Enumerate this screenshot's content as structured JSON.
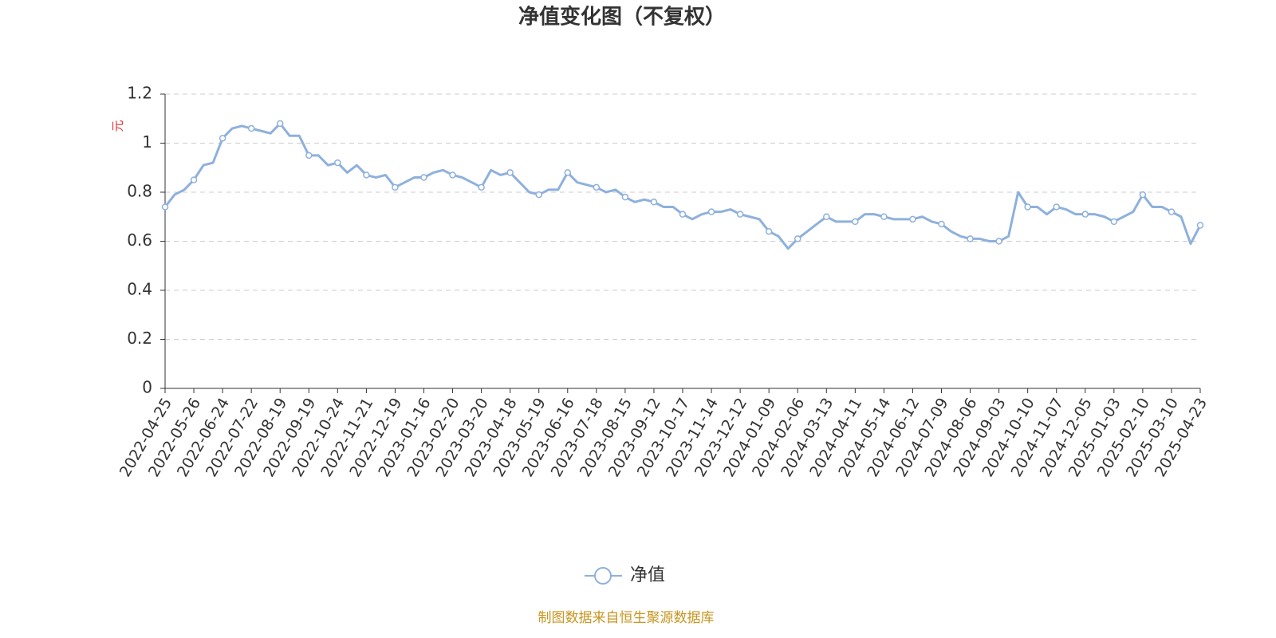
{
  "chart_data": {
    "type": "line",
    "title": "净值变化图（不复权）",
    "y_label": "元",
    "source": "制图数据来自恒生聚源数据库",
    "categories": [
      "2022-04-25",
      null,
      null,
      "2022-05-26",
      null,
      null,
      "2022-06-24",
      null,
      null,
      "2022-07-22",
      null,
      null,
      "2022-08-19",
      null,
      null,
      "2022-09-19",
      null,
      null,
      "2022-10-24",
      null,
      null,
      "2022-11-21",
      null,
      null,
      "2022-12-19",
      null,
      null,
      "2023-01-16",
      null,
      null,
      "2023-02-20",
      null,
      null,
      "2023-03-20",
      null,
      null,
      "2023-04-18",
      null,
      null,
      "2023-05-19",
      null,
      null,
      "2023-06-16",
      null,
      null,
      "2023-07-18",
      null,
      null,
      "2023-08-15",
      null,
      null,
      "2023-09-12",
      null,
      null,
      "2023-10-17",
      null,
      null,
      "2023-11-14",
      null,
      null,
      "2023-12-12",
      null,
      null,
      "2024-01-09",
      null,
      null,
      "2024-02-06",
      null,
      null,
      "2024-03-13",
      null,
      null,
      "2024-04-11",
      null,
      null,
      "2024-05-14",
      null,
      null,
      "2024-06-12",
      null,
      null,
      "2024-07-09",
      null,
      null,
      "2024-08-06",
      null,
      null,
      "2024-09-03",
      null,
      null,
      "2024-10-10",
      null,
      null,
      "2024-11-07",
      null,
      null,
      "2024-12-05",
      null,
      null,
      "2025-01-03",
      null,
      null,
      "2025-02-10",
      null,
      null,
      "2025-03-10",
      null,
      null,
      "2025-04-23"
    ],
    "series": [
      {
        "name": "净值",
        "color": "#8eb0dd",
        "values": [
          0.74,
          0.79,
          0.81,
          0.85,
          0.91,
          0.92,
          1.02,
          1.06,
          1.07,
          1.06,
          1.05,
          1.04,
          1.08,
          1.03,
          1.03,
          0.95,
          0.95,
          0.91,
          0.92,
          0.88,
          0.91,
          0.87,
          0.86,
          0.87,
          0.82,
          0.84,
          0.86,
          0.86,
          0.88,
          0.89,
          0.87,
          0.86,
          0.84,
          0.82,
          0.89,
          0.87,
          0.88,
          0.84,
          0.8,
          0.79,
          0.81,
          0.81,
          0.88,
          0.84,
          0.83,
          0.82,
          0.8,
          0.81,
          0.78,
          0.76,
          0.77,
          0.76,
          0.74,
          0.74,
          0.71,
          0.69,
          0.71,
          0.72,
          0.72,
          0.73,
          0.71,
          0.7,
          0.69,
          0.64,
          0.62,
          0.57,
          0.61,
          0.64,
          0.67,
          0.7,
          0.68,
          0.68,
          0.68,
          0.71,
          0.71,
          0.7,
          0.69,
          0.69,
          0.69,
          0.7,
          0.68,
          0.67,
          0.64,
          0.62,
          0.61,
          0.61,
          0.6,
          0.6,
          0.62,
          0.8,
          0.74,
          0.74,
          0.71,
          0.74,
          0.73,
          0.71,
          0.71,
          0.71,
          0.7,
          0.68,
          0.7,
          0.72,
          0.79,
          0.74,
          0.74,
          0.72,
          0.7,
          0.59,
          0.665
        ]
      }
    ],
    "ylim": [
      0,
      1.2
    ],
    "yticks": [
      0,
      0.2,
      0.4,
      0.6,
      0.8,
      1,
      1.2
    ],
    "grid": true
  }
}
